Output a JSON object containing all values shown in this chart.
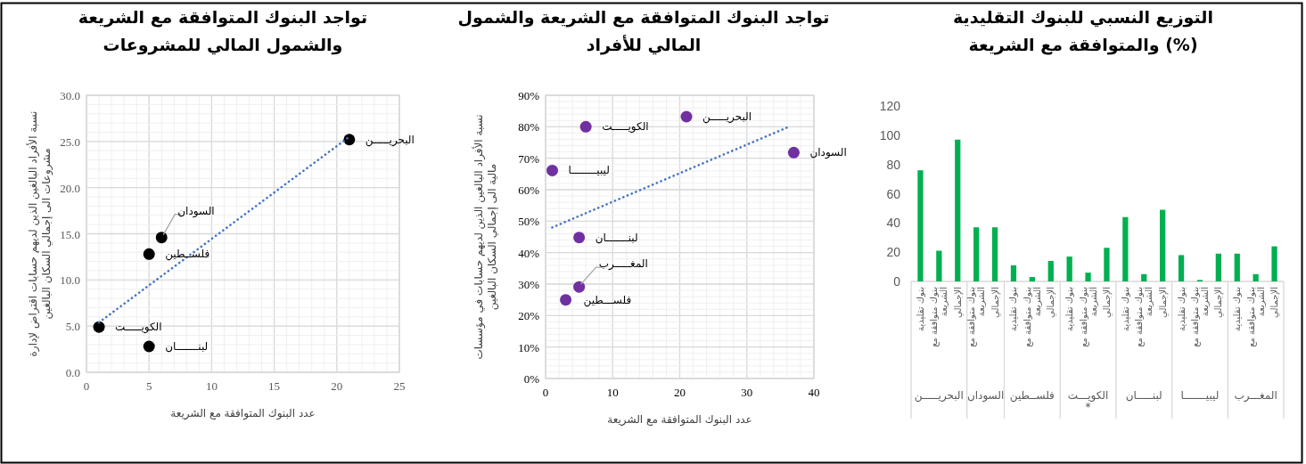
{
  "chart_data": [
    {
      "type": "scatter",
      "title": "تواجد البنوك المتوافقة مع الشريعة والشمول المالي للمشروعات",
      "xlabel": "عدد البنوك المتوافقة مع الشريعة",
      "ylabel": "نسبة الأفراد البالغين الذين لديهم حسابات اقتراض لإدارة مشروعات الى إجمالي السكان البالغين",
      "xlim": [
        0,
        25
      ],
      "xticks": [
        0,
        5,
        10,
        15,
        20,
        25
      ],
      "ylim": [
        0,
        30
      ],
      "yticks": [
        {
          "value": 0,
          "label": "0.0"
        },
        {
          "value": 5,
          "label": "5.0"
        },
        {
          "value": 10,
          "label": "10.0"
        },
        {
          "value": 15,
          "label": "15.0"
        },
        {
          "value": 20,
          "label": "20.0"
        },
        {
          "value": 25,
          "label": "25.0"
        },
        {
          "value": 30,
          "label": "30.0"
        }
      ],
      "grid": true,
      "series": [
        {
          "marker": "circle",
          "color": "#000000",
          "x": [
            21,
            6,
            5,
            1,
            5
          ],
          "values": [
            25.2,
            14.6,
            12.8,
            4.9,
            2.8
          ]
        },
        {
          "type": "line",
          "line_style": "dotted",
          "color": "#4472c4",
          "x": [
            1,
            21
          ],
          "values": [
            5.4,
            25.5
          ]
        }
      ],
      "annotations": [
        {
          "text": "البحريـــــن",
          "x": 21,
          "y": 25.2
        },
        {
          "text": "السودان",
          "x": 6,
          "y": 14.6
        },
        {
          "text": "فلســطين",
          "x": 5,
          "y": 12.8
        },
        {
          "text": "الكويـــــت",
          "x": 1,
          "y": 4.9
        },
        {
          "text": "لبنـــــــان",
          "x": 5,
          "y": 2.8
        }
      ]
    },
    {
      "type": "scatter",
      "title": "تواجد البنوك المتوافقة مع الشريعة والشمول المالي للأفراد",
      "xlabel": "عدد البنوك المتوافقة مع الشريعة",
      "ylabel": "نسبة الأفراد البالغين الذين لديهم حسابات في مؤسسات مالية الى إجمالي السكان البالغين",
      "xlim": [
        0,
        40
      ],
      "xticks": [
        0,
        10,
        20,
        30,
        40
      ],
      "ylim": [
        0,
        90
      ],
      "yticks": [
        {
          "value": 0,
          "label": "0%"
        },
        {
          "value": 10,
          "label": "10%"
        },
        {
          "value": 20,
          "label": "20%"
        },
        {
          "value": 30,
          "label": "30%"
        },
        {
          "value": 40,
          "label": "40%"
        },
        {
          "value": 50,
          "label": "50%"
        },
        {
          "value": 60,
          "label": "60%"
        },
        {
          "value": 70,
          "label": "70%"
        },
        {
          "value": 80,
          "label": "80%"
        },
        {
          "value": 90,
          "label": "90%"
        }
      ],
      "grid": true,
      "series": [
        {
          "marker": "circle",
          "color": "#7030a0",
          "x": [
            21,
            6,
            37,
            1,
            5,
            5,
            3
          ],
          "values": [
            83.2,
            80.0,
            71.8,
            66.1,
            44.8,
            29.1,
            25.0
          ]
        },
        {
          "type": "line",
          "line_style": "dotted",
          "color": "#4472c4",
          "x": [
            1,
            36.5
          ],
          "values": [
            48.0,
            80.2
          ]
        }
      ],
      "annotations": [
        {
          "text": "البحريـــــن",
          "x": 21,
          "y": 83.2
        },
        {
          "text": "الكويـــــت",
          "x": 6,
          "y": 80.0
        },
        {
          "text": "السودان",
          "x": 37,
          "y": 71.8
        },
        {
          "text": "ليبيــــــــا",
          "x": 1,
          "y": 66.1
        },
        {
          "text": "لبنـــــــان",
          "x": 5,
          "y": 44.8
        },
        {
          "text": "المغـــــرب",
          "x": 5,
          "y": 29.1
        },
        {
          "text": "فلســـطين",
          "x": 3,
          "y": 25.0
        }
      ]
    },
    {
      "type": "bar",
      "title": "التوزيع النسبي للبنوك التقليدية والمتوافقة مع الشريعة (%)",
      "ylim": [
        0,
        120
      ],
      "yticks": [
        0,
        20,
        40,
        60,
        80,
        100,
        120
      ],
      "grid": false,
      "categories": [
        "بنوك تقليدية",
        "بنوك متوافقة مع الشريعة",
        "الإجمالي",
        "بنوك متوافقة مع الشريعة",
        "الإجمالي",
        "بنوك تقليدية",
        "بنوك متوافقة مع الشريعة",
        "الإجمالي",
        "بنوك تقليدية",
        "بنوك متوافقة مع الشريعة",
        "الإجمالي",
        "بنوك تقليدية",
        "بنوك متوافقة مع الشريعة",
        "الإجمالي",
        "بنوك تقليدية",
        "بنوك متوافقة مع الشريعة",
        "الإجمالي",
        "بنوك تقليدية",
        "بنوك متوافقة مع الشريعة",
        "الإجمالي"
      ],
      "series": [
        {
          "color": "#00b050",
          "values": [
            76,
            21,
            97,
            37,
            37,
            11,
            3,
            14,
            17,
            6,
            23,
            44,
            5,
            49,
            18,
            1,
            19,
            19,
            5,
            24
          ]
        }
      ],
      "annotations": [
        "البحريـــــن",
        "السودان",
        "فلســطين",
        "الكويـــت\n*",
        "لبنـــــان",
        "ليبيـــــــا",
        "المغـــرب"
      ]
    }
  ]
}
